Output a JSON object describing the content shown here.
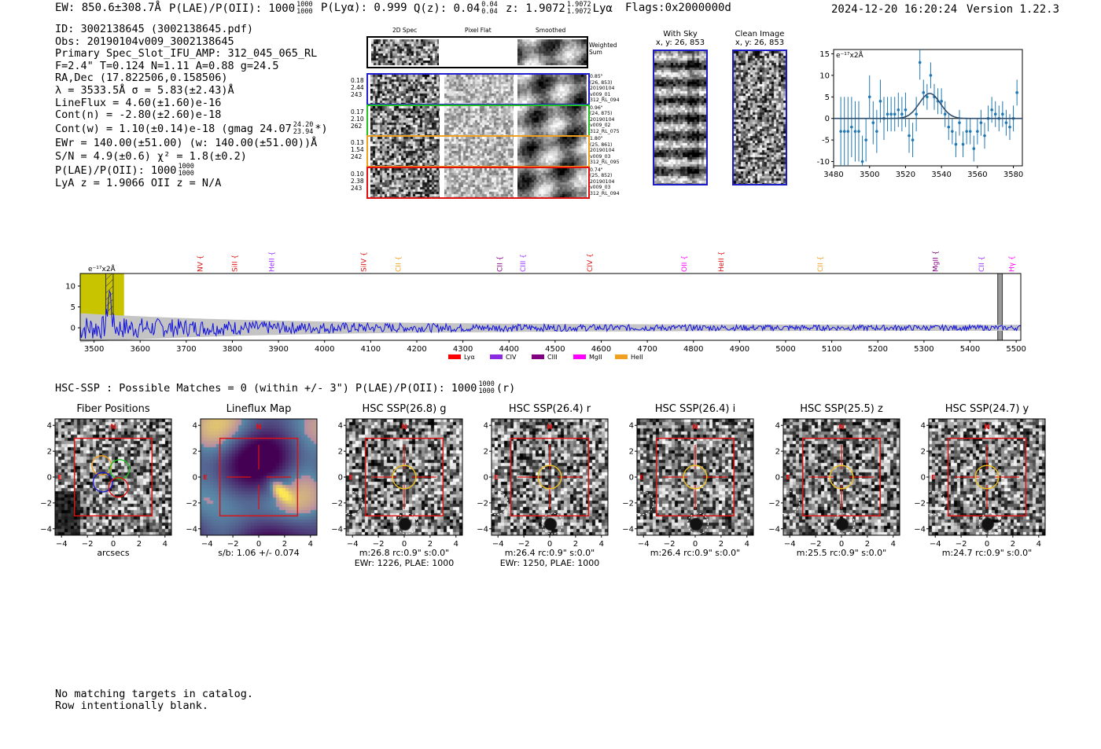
{
  "header": {
    "ew": "EW: 850.6±308.7Å",
    "plae_label": "P(LAE)/P(OII): 1000",
    "plae_hi": "1000",
    "plae_lo": "1000",
    "plya": "P(Lyα): 0.999",
    "qz_label": "Q(z): 0.04",
    "qz_hi": "0.04",
    "qz_lo": "0.04",
    "z_label": "z: 1.9072",
    "z_hi": "1.9072",
    "z_lo": "1.9072",
    "z_line": "Lyα",
    "flags": "Flags:0x2000000d",
    "datetime": "2024-12-20 16:20:24",
    "version": "Version 1.22.3"
  },
  "info": {
    "id": "ID: 3002138645 (3002138645.pdf)",
    "obs": "Obs: 20190104v009_3002138645",
    "primary": "Primary Spec_Slot_IFU_AMP: 312_045_065_RL",
    "fit": "F=2.4\"  T=0.124  N=1.11  A=0.88  g=24.5",
    "radec": "RA,Dec (17.822506,0.158506)",
    "lambda": "λ = 3533.5Å   σ = 5.83(±2.43)Å",
    "lineflux": "LineFlux = 4.60(±1.60)e-16",
    "contn": "Cont(n) = -2.80(±2.60)e-18",
    "contw": "Cont(w) = 1.10(±0.14)e-18 (gmag 24.07",
    "gmag_hi": "24.20",
    "gmag_lo": "23.94",
    "contw_end": "*)",
    "ewr": "EWr = 140.00(±51.00) (w: 140.00(±51.00))Å",
    "sn": "S/N = 4.9(±0.6)  χ² = 1.8(±0.2)",
    "plae": "P(LAE)/P(OII): 1000",
    "plae_hi": "1000",
    "plae_lo": "1000",
    "lya": "LyA z = 1.9066  OII z = N/A"
  },
  "cutouts": {
    "col_2d": "2D Spec",
    "col_flat": "Pixel Flat",
    "col_smooth": "Smoothed",
    "weighted": "Weighted Sum",
    "rows": [
      {
        "w": "0.18",
        "x": "2.44",
        "n": "243",
        "dist": "0.85\"",
        "xy": "(26, 853)",
        "d": "20190104",
        "v": "v009_01",
        "s": "312_RL_094",
        "color": "#1f1fd0"
      },
      {
        "w": "0.17",
        "x": "2.10",
        "n": "262",
        "dist": "0.96\"",
        "xy": "(24, 875)",
        "d": "20190104",
        "v": "v009_02",
        "s": "312_RL_075",
        "color": "#22c022"
      },
      {
        "w": "0.13",
        "x": "1.54",
        "n": "242",
        "dist": "1.80\"",
        "xy": "(25, 861)",
        "d": "20190104",
        "v": "v009_03",
        "s": "312_RL_095",
        "color": "#f0a020"
      },
      {
        "w": "0.10",
        "x": "2.38",
        "n": "243",
        "dist": "0.74\"",
        "xy": "(25, 852)",
        "d": "20190104",
        "v": "v009_03",
        "s": "312_RL_094",
        "color": "#e01010"
      }
    ]
  },
  "sky": {
    "with_sky": "With Sky",
    "with_sky_xy": "x, y: 26, 853",
    "clean": "Clean Image",
    "clean_xy": "x, y: 26, 853"
  },
  "line_labels": [
    {
      "t": "NV",
      "c": "#e01010",
      "w": 3730
    },
    {
      "t": "SiII",
      "c": "#e01010",
      "w": 3805
    },
    {
      "t": "HeII",
      "c": "#9b30ff",
      "w": 3885
    },
    {
      "t": "SiIV",
      "c": "#e01010",
      "w": 4085
    },
    {
      "t": "CII",
      "c": "#f0a020",
      "w": 4160
    },
    {
      "t": "CII",
      "c": "#800080",
      "w": 4380
    },
    {
      "t": "CIII",
      "c": "#9b30ff",
      "w": 4430
    },
    {
      "t": "CIV",
      "c": "#e01010",
      "w": 4575
    },
    {
      "t": "OII",
      "c": "#ff00ff",
      "w": 4780
    },
    {
      "t": "HeII",
      "c": "#e01010",
      "w": 4860
    },
    {
      "t": "CII",
      "c": "#f0a020",
      "w": 5075
    },
    {
      "t": "MgII",
      "c": "#800080",
      "w": 5325
    },
    {
      "t": "CII",
      "c": "#9b30ff",
      "w": 5425
    },
    {
      "t": "Hγ",
      "c": "#ff00ff",
      "w": 5490
    }
  ],
  "legend": [
    {
      "t": "Lyα",
      "c": "#ff0000"
    },
    {
      "t": "CIV",
      "c": "#8a2be2"
    },
    {
      "t": "CIII",
      "c": "#800080"
    },
    {
      "t": "MgII",
      "c": "#ff00ff"
    },
    {
      "t": "HeII",
      "c": "#f0a020"
    }
  ],
  "hsc": {
    "header": "HSC-SSP : Possible Matches = 0 (within +/- 3\")  P(LAE)/P(OII): 1000",
    "hi": "1000",
    "lo": "1000",
    "tail": "(r)",
    "panels": [
      {
        "title": "Fiber Positions",
        "c1": "arcsecs",
        "c2": ""
      },
      {
        "title": "Lineflux Map",
        "c1": "s/b: 1.06 +/- 0.074",
        "c2": ""
      },
      {
        "title": "HSC SSP(26.8) g",
        "c1": "m:26.8 rc:0.9\"  s:0.0\"",
        "c2": "EWr: 1226, PLAE: 1000"
      },
      {
        "title": "HSC SSP(26.4) r",
        "c1": "m:26.4 rc:0.9\"  s:0.0\"",
        "c2": "EWr: 1250, PLAE: 1000"
      },
      {
        "title": "HSC SSP(26.4) i",
        "c1": "m:26.4 rc:0.9\"  s:0.0\"",
        "c2": ""
      },
      {
        "title": "HSC SSP(25.5) z",
        "c1": "m:25.5 rc:0.9\"  s:0.0\"",
        "c2": ""
      },
      {
        "title": "HSC SSP(24.7) y",
        "c1": "m:24.7 rc:0.9\"  s:0.0\"",
        "c2": ""
      }
    ],
    "north": "N",
    "east": "E"
  },
  "footer": {
    "line1": "No matching targets in catalog.",
    "line2": "Row intentionally blank."
  },
  "chart_data": [
    {
      "type": "scatter",
      "title": "",
      "ylabel": "e⁻¹⁷x2Å",
      "xlim": [
        3480,
        3585
      ],
      "ylim": [
        -11,
        16
      ],
      "xticks": [
        3480,
        3500,
        3520,
        3540,
        3560,
        3580
      ],
      "yticks": [
        -10,
        -5,
        0,
        5,
        10,
        15
      ],
      "x": [
        3484,
        3486,
        3488,
        3490,
        3492,
        3494,
        3496,
        3498,
        3500,
        3502,
        3504,
        3506,
        3508,
        3510,
        3512,
        3514,
        3516,
        3518,
        3520,
        3522,
        3524,
        3526,
        3528,
        3530,
        3532,
        3534,
        3536,
        3538,
        3540,
        3542,
        3544,
        3546,
        3548,
        3550,
        3552,
        3554,
        3556,
        3558,
        3560,
        3562,
        3564,
        3566,
        3568,
        3570,
        3572,
        3574,
        3576,
        3578,
        3580,
        3582
      ],
      "y": [
        -3,
        -3,
        -3,
        -2,
        -3,
        -3,
        -10,
        -5,
        5,
        -1,
        -3,
        4,
        0,
        1,
        1,
        1,
        2,
        1,
        2,
        -4,
        -5,
        1,
        13,
        6,
        5,
        10,
        5,
        4,
        4,
        1,
        -2,
        -3,
        -6,
        -1,
        -6,
        -3,
        -3,
        -7,
        -3,
        -1,
        -4,
        0,
        2,
        1,
        0,
        1,
        -1,
        -2,
        0,
        6
      ],
      "err": [
        8,
        8,
        8,
        7,
        7,
        7,
        6,
        5,
        5,
        5,
        5,
        5,
        5,
        4,
        4,
        4,
        4,
        4,
        4,
        4,
        4,
        4,
        4,
        3,
        3,
        3,
        3,
        3,
        3,
        3,
        3,
        3,
        3,
        3,
        3,
        3,
        3,
        3,
        3,
        3,
        3,
        3,
        3,
        3,
        3,
        3,
        3,
        3,
        3,
        3
      ],
      "fit": {
        "type": "gaussian",
        "center": 3533.5,
        "amplitude": 5.8,
        "sigma": 5.83
      }
    },
    {
      "type": "line",
      "title": "",
      "ylabel": "e⁻¹⁷x2Å",
      "xlim": [
        3470,
        5510
      ],
      "ylim": [
        -3,
        13
      ],
      "xticks": [
        3500,
        3600,
        3700,
        3800,
        3900,
        4000,
        4100,
        4200,
        4300,
        4400,
        4500,
        4600,
        4700,
        4800,
        4900,
        5000,
        5100,
        5200,
        5300,
        5400,
        5500
      ],
      "yticks": [
        0,
        5,
        10
      ],
      "series": [
        {
          "name": "spectrum",
          "seed": 7,
          "n": 900,
          "amplitude": 1.6
        }
      ],
      "highlight_band": [
        3470,
        3565
      ],
      "emission_line": 3533.5,
      "masked_band": [
        5460,
        5470
      ]
    }
  ]
}
